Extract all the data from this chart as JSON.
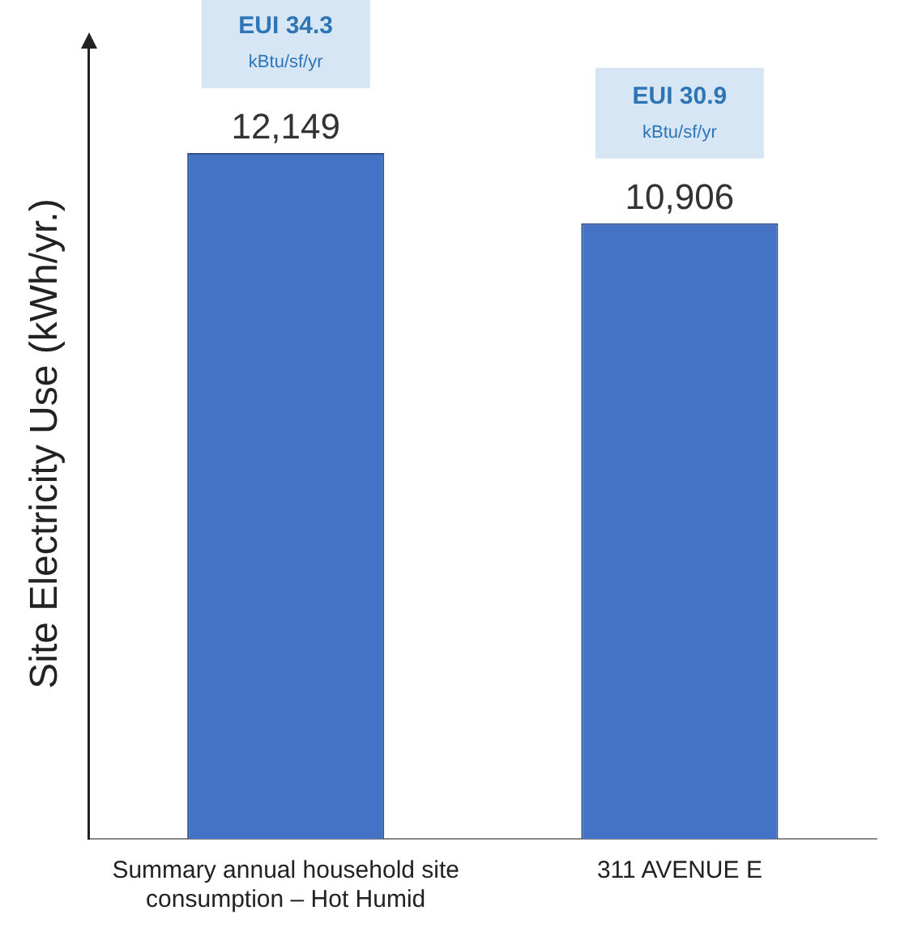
{
  "chart_data": {
    "type": "bar",
    "categories": [
      "Summary annual household site consumption – Hot Humid",
      "311 AVENUE E"
    ],
    "values": [
      12149,
      10906
    ],
    "value_labels": [
      "12,149",
      "10,906"
    ],
    "color": "#4472c4",
    "ylabel": "Site Electricity Use (kWh/yr.)",
    "grid": false,
    "tick_labels": "x",
    "annotations": [
      "EUI 34.3\nkBtu/sf/yr",
      "EUI 30.9\nkBtu/sf/yr"
    ]
  }
}
